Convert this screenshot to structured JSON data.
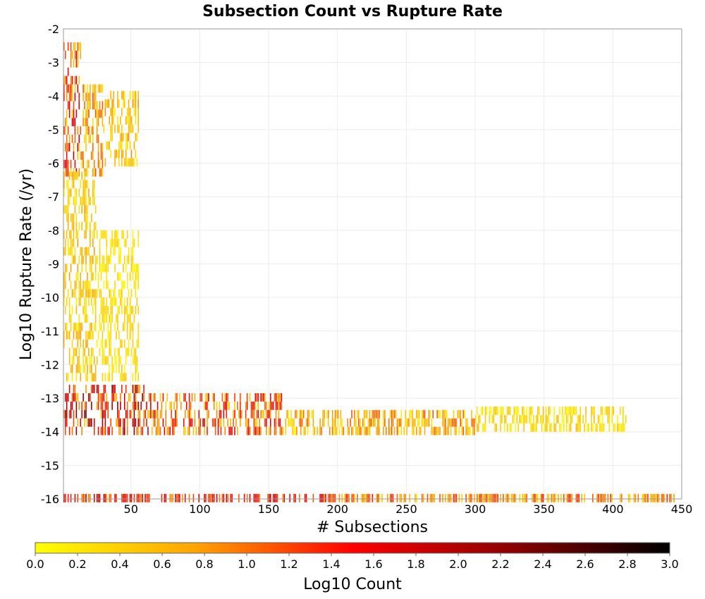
{
  "chart_data": {
    "type": "heatmap",
    "title": "Subsection Count vs Rupture Rate",
    "xlabel": "# Subsections",
    "ylabel": "Log10 Rupture Rate (/yr)",
    "colorbar_label": "Log10 Count",
    "xlim": [
      1,
      450
    ],
    "ylim": [
      -16,
      -2
    ],
    "x_ticks": [
      50,
      100,
      150,
      200,
      250,
      300,
      350,
      400,
      450
    ],
    "y_ticks": [
      -2,
      -3,
      -4,
      -5,
      -6,
      -7,
      -8,
      -9,
      -10,
      -11,
      -12,
      -13,
      -14,
      -15,
      -16
    ],
    "color_range": [
      0.0,
      3.0
    ],
    "colorbar_ticks": [
      "0.0",
      "0.2",
      "0.4",
      "0.6",
      "0.8",
      "1.0",
      "1.2",
      "1.4",
      "1.6",
      "1.8",
      "2.0",
      "2.2",
      "2.4",
      "2.6",
      "2.8",
      "3.0"
    ],
    "colormap": [
      "#ffff00",
      "#ffa500",
      "#ff0000",
      "#8b0000",
      "#000000"
    ],
    "grid": true,
    "regions": [
      {
        "x": [
          1,
          14
        ],
        "y": [
          -6.4,
          -2.1
        ],
        "z": [
          0.3,
          2.0
        ]
      },
      {
        "x": [
          14,
          30
        ],
        "y": [
          -6.4,
          -3.6
        ],
        "z": [
          0.2,
          1.2
        ]
      },
      {
        "x": [
          30,
          56
        ],
        "y": [
          -6.1,
          -3.9
        ],
        "z": [
          0.1,
          0.9
        ]
      },
      {
        "x": [
          1,
          25
        ],
        "y": [
          -12.5,
          -6.2
        ],
        "z": [
          0.1,
          0.8
        ]
      },
      {
        "x": [
          25,
          56
        ],
        "y": [
          -12.5,
          -8.0
        ],
        "z": [
          0.0,
          0.5
        ]
      },
      {
        "x": [
          1,
          60
        ],
        "y": [
          -14.1,
          -12.6
        ],
        "z": [
          0.4,
          2.4
        ]
      },
      {
        "x": [
          60,
          160
        ],
        "y": [
          -14.1,
          -12.8
        ],
        "z": [
          0.3,
          1.8
        ]
      },
      {
        "x": [
          160,
          300
        ],
        "y": [
          -14.1,
          -13.3
        ],
        "z": [
          0.1,
          1.2
        ]
      },
      {
        "x": [
          300,
          410
        ],
        "y": [
          -14.0,
          -13.3
        ],
        "z": [
          0.0,
          0.6
        ]
      },
      {
        "x": [
          1,
          200
        ],
        "y": [
          -16.1,
          -15.9
        ],
        "z": [
          0.8,
          2.0
        ]
      },
      {
        "x": [
          200,
          445
        ],
        "y": [
          -16.1,
          -15.9
        ],
        "z": [
          0.3,
          1.4
        ]
      }
    ]
  }
}
